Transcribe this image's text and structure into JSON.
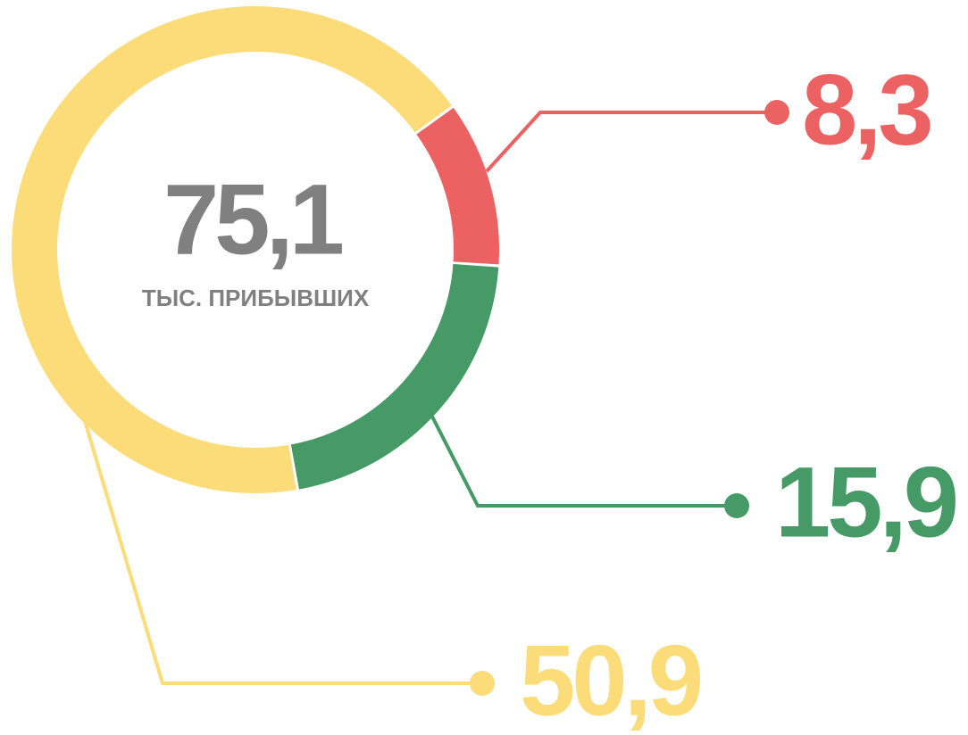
{
  "chart_data": {
    "type": "donut",
    "center_label": "75,1",
    "center_caption": "ТЫС. ПРИБЫВШИХ",
    "center_color": "#808080",
    "series": [
      {
        "values": [
          8.3,
          15.9,
          50.9
        ],
        "value_labels": [
          "8,3",
          "15,9",
          "50,9"
        ],
        "colors": [
          "#ec6161",
          "#469a65",
          "#fcdb79"
        ]
      }
    ]
  }
}
